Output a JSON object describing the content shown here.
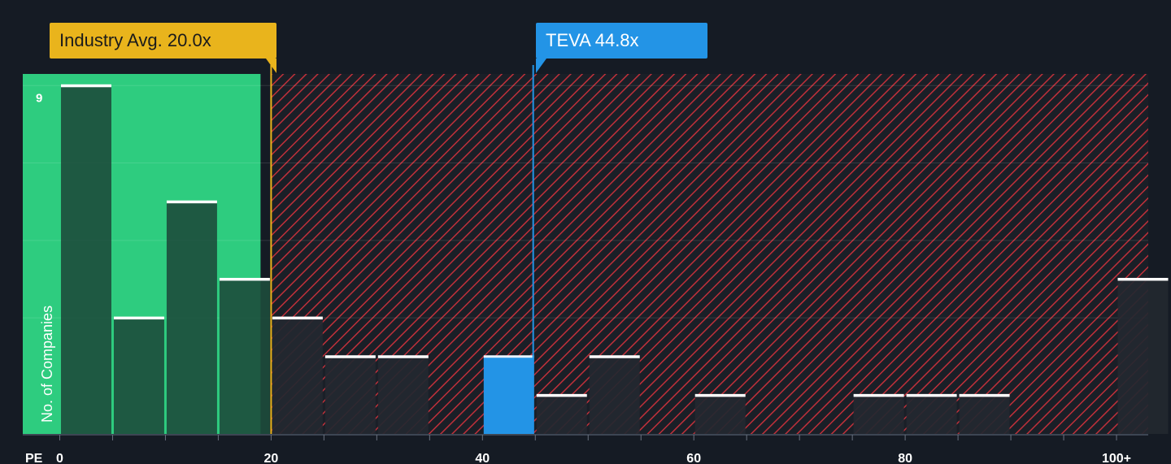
{
  "chart_data": {
    "type": "bar",
    "xlabel": "PE",
    "ylabel": "No. of Companies",
    "bin_width": 5,
    "x_ticks": [
      {
        "value": 0,
        "label": "0"
      },
      {
        "value": 20,
        "label": "20"
      },
      {
        "value": 40,
        "label": "40"
      },
      {
        "value": 60,
        "label": "60"
      },
      {
        "value": 80,
        "label": "80"
      },
      {
        "value": 100,
        "label": "100+"
      }
    ],
    "y_ticks": [
      {
        "value": 9,
        "label": "9"
      }
    ],
    "xlim": [
      -3.5,
      103
    ],
    "ylim": [
      0,
      9.3
    ],
    "bins": [
      {
        "x0": 0,
        "x1": 5,
        "count": 9
      },
      {
        "x0": 5,
        "x1": 10,
        "count": 3
      },
      {
        "x0": 10,
        "x1": 15,
        "count": 6
      },
      {
        "x0": 15,
        "x1": 20,
        "count": 4
      },
      {
        "x0": 20,
        "x1": 25,
        "count": 3
      },
      {
        "x0": 25,
        "x1": 30,
        "count": 2
      },
      {
        "x0": 30,
        "x1": 35,
        "count": 2
      },
      {
        "x0": 40,
        "x1": 45,
        "count": 2,
        "highlight": true
      },
      {
        "x0": 45,
        "x1": 50,
        "count": 1
      },
      {
        "x0": 50,
        "x1": 55,
        "count": 2
      },
      {
        "x0": 60,
        "x1": 65,
        "count": 1
      },
      {
        "x0": 75,
        "x1": 80,
        "count": 1
      },
      {
        "x0": 80,
        "x1": 85,
        "count": 1
      },
      {
        "x0": 85,
        "x1": 90,
        "count": 1
      },
      {
        "x0": 100,
        "x1": 105,
        "count": 4
      }
    ],
    "industry_avg": {
      "value": 20.0,
      "label": "Industry Avg. 20.0x",
      "color": "#e9b41c"
    },
    "company": {
      "ticker": "TEVA",
      "value": 44.8,
      "label": "TEVA 44.8x",
      "color": "#2394e6"
    },
    "colors": {
      "fair_zone": "#2ecc7f",
      "overvalued_hatch": "#c0303a",
      "bar_in_fair": "#1d4d3c",
      "bar_outside": "#232830",
      "bar_top": "#ffffff",
      "highlight": "#2394e6"
    }
  }
}
